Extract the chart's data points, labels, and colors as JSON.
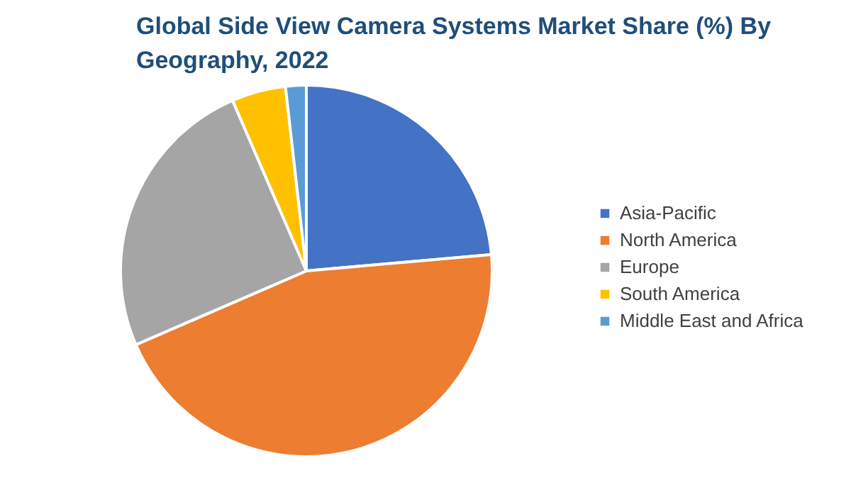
{
  "chart_data": {
    "type": "pie",
    "title": "Global Side View Camera Systems Market Share (%) By Geography, 2022",
    "categories": [
      "Asia-Pacific",
      "North America",
      "Europe",
      "South America",
      "Middle East and Africa"
    ],
    "values": [
      23.6,
      44.9,
      25.0,
      4.7,
      1.8
    ],
    "colors": [
      "#4472c4",
      "#ed7d31",
      "#a5a5a5",
      "#ffc000",
      "#5b9bd5"
    ],
    "legend": "right"
  }
}
